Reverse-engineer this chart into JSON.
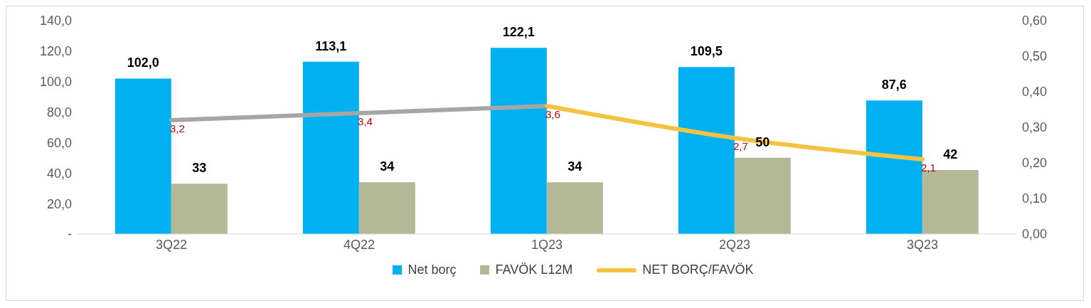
{
  "chart_data": {
    "type": "bar",
    "categories": [
      "3Q22",
      "4Q22",
      "1Q23",
      "2Q23",
      "3Q23"
    ],
    "series": [
      {
        "name": "Net borç",
        "color": "#00b0f0",
        "values": [
          102.0,
          113.1,
          122.1,
          109.5,
          87.6
        ],
        "value_labels": [
          "102,0",
          "113,1",
          "122,1",
          "109,5",
          "87,6"
        ]
      },
      {
        "name": "FAVÖK L12M",
        "color": "#b3b996",
        "values": [
          33,
          34,
          34,
          50,
          42
        ],
        "value_labels": [
          "33",
          "34",
          "34",
          "50",
          "42"
        ]
      },
      {
        "type": "line",
        "axis": "y2",
        "color": "#a6a6a6",
        "values": [
          0.32,
          0.34,
          0.36,
          null,
          null
        ]
      },
      {
        "type": "line",
        "axis": "y2",
        "name": "NET BORÇ/FAVÖK",
        "color": "#f5c342",
        "values": [
          null,
          null,
          0.36,
          0.27,
          0.21
        ]
      }
    ],
    "annotations": [
      "3,2",
      "3,4",
      "3,6",
      "2,7",
      "2,1"
    ],
    "ylim": [
      0,
      140
    ],
    "yticks": [
      {
        "value": 0,
        "label": "-"
      },
      {
        "value": 20,
        "label": "20,0"
      },
      {
        "value": 40,
        "label": "40,0"
      },
      {
        "value": 60,
        "label": "60,0"
      },
      {
        "value": 80,
        "label": "80,0"
      },
      {
        "value": 100,
        "label": "100,0"
      },
      {
        "value": 120,
        "label": "120,0"
      },
      {
        "value": 140,
        "label": "140,0"
      }
    ],
    "y2lim": [
      0,
      0.6
    ],
    "y2ticks": [
      {
        "value": 0,
        "label": "0,00"
      },
      {
        "value": 0.1,
        "label": "0,10"
      },
      {
        "value": 0.2,
        "label": "0,20"
      },
      {
        "value": 0.3,
        "label": "0,30"
      },
      {
        "value": 0.4,
        "label": "0,40"
      },
      {
        "value": 0.5,
        "label": "0,50"
      },
      {
        "value": 0.6,
        "label": "0,60"
      }
    ],
    "grid": false,
    "legend": "bottom"
  }
}
